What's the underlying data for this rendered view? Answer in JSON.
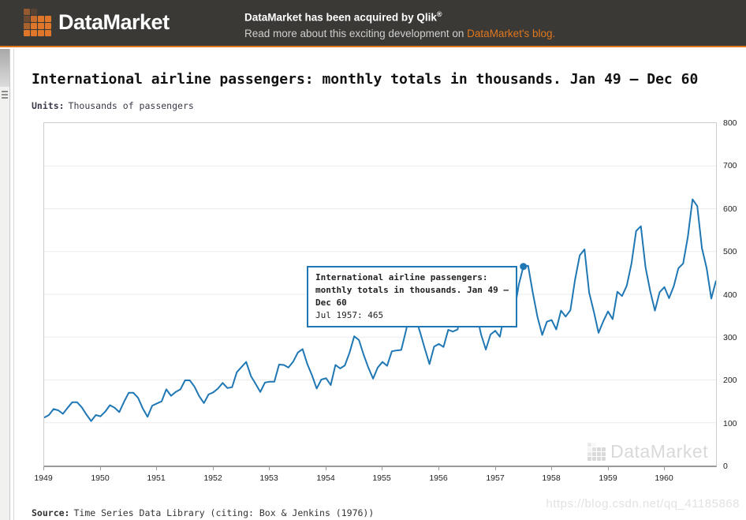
{
  "header": {
    "logo_text": "DataMarket",
    "acquired_text": "DataMarket has been acquired by Qlik",
    "registered_mark": "®",
    "read_more_text": "Read more about this exciting development on ",
    "blog_link_label": "DataMarket's blog.",
    "colors": {
      "background": "#3a3936",
      "accent_orange": "#e0771c"
    }
  },
  "main": {
    "title": "International airline passengers: monthly totals in thousands. Jan 49 – Dec 60",
    "units_label": "Units:",
    "units_value": "Thousands of passengers",
    "source_label": "Source:",
    "source_value": "Time Series Data Library (citing: Box & Jenkins (1976))"
  },
  "tooltip": {
    "title_lines": [
      "International airline passengers:",
      "monthly totals in thousands. Jan 49 –",
      "Dec 60"
    ],
    "value_line": "Jul 1957: 465"
  },
  "chart_data": {
    "type": "line",
    "title": "International airline passengers: monthly totals in thousands. Jan 49 – Dec 60",
    "xlabel": "",
    "ylabel": "Thousands of passengers",
    "x_start": "Jan 1949",
    "x_end": "Dec 1960",
    "categories_years": [
      1949,
      1950,
      1951,
      1952,
      1953,
      1954,
      1955,
      1956,
      1957,
      1958,
      1959,
      1960
    ],
    "months_per_year": 12,
    "ylim": [
      0,
      800
    ],
    "yticks": [
      0,
      100,
      200,
      300,
      400,
      500,
      600,
      700,
      800
    ],
    "grid": "horizontal",
    "legend": "none",
    "line_color": "#1f77b4",
    "series": [
      {
        "name": "International airline passengers (thousands)",
        "values": [
          112,
          118,
          132,
          129,
          121,
          135,
          148,
          148,
          136,
          119,
          104,
          118,
          115,
          126,
          141,
          135,
          125,
          149,
          170,
          170,
          158,
          133,
          114,
          140,
          145,
          150,
          178,
          163,
          172,
          178,
          199,
          199,
          184,
          162,
          146,
          166,
          171,
          180,
          193,
          181,
          183,
          218,
          230,
          242,
          209,
          191,
          172,
          194,
          196,
          196,
          236,
          235,
          229,
          243,
          264,
          272,
          237,
          211,
          180,
          201,
          204,
          188,
          235,
          227,
          234,
          264,
          302,
          293,
          259,
          229,
          203,
          229,
          242,
          233,
          267,
          269,
          270,
          315,
          364,
          347,
          312,
          274,
          237,
          278,
          284,
          277,
          317,
          313,
          318,
          374,
          413,
          405,
          355,
          306,
          271,
          306,
          315,
          301,
          356,
          348,
          355,
          422,
          465,
          467,
          404,
          347,
          305,
          336,
          340,
          318,
          362,
          348,
          363,
          435,
          491,
          505,
          404,
          359,
          310,
          337,
          360,
          342,
          406,
          396,
          420,
          472,
          548,
          559,
          463,
          407,
          362,
          405,
          417,
          391,
          419,
          461,
          472,
          535,
          622,
          606,
          508,
          461,
          390,
          432
        ]
      }
    ],
    "highlight": {
      "index": 102,
      "label": "Jul 1957",
      "value": 465
    },
    "watermark": "DataMarket"
  },
  "overlay": {
    "csdn_watermark": "https://blog.csdn.net/qq_41185868"
  }
}
